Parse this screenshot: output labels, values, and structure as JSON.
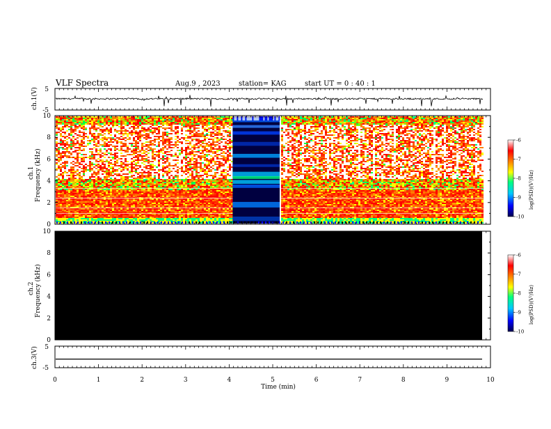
{
  "header": {
    "title": "VLF Spectra",
    "date": "Aug.9 , 2023",
    "station": "station= KAG",
    "start_ut": "start UT = 0 : 40 : 1"
  },
  "chart_data": [
    {
      "type": "line",
      "name": "ch1-waveform",
      "ylabel": "ch.1(V)",
      "ylim": [
        -5,
        5
      ],
      "yticks": [
        "5",
        "-5"
      ],
      "xlim": [
        0,
        10
      ],
      "baseline": 0.2,
      "description_of_values": "noisy waveform around ~0.2 V with sparse negative spikes"
    },
    {
      "type": "heatmap",
      "name": "ch1-spectrogram",
      "ylabel": "ch.1\nFrequency (kHz)",
      "ylim": [
        0,
        10
      ],
      "yticks": [
        "0",
        "2",
        "4",
        "6",
        "8",
        "10"
      ],
      "xlim": [
        0,
        10
      ],
      "data_extent_min": [
        0,
        9.83
      ],
      "gap_min": [
        4.08,
        5.16
      ],
      "colorbar": {
        "label": "log(PSD)(V²/Hz)",
        "range": [
          -10,
          -6
        ],
        "ticks": [
          "-6",
          "-7",
          "-8",
          "-9",
          "-10"
        ]
      }
    },
    {
      "type": "heatmap",
      "name": "ch2-spectrogram",
      "ylabel": "ch.2\nFrequency (kHz)",
      "ylim": [
        0,
        10
      ],
      "yticks": [
        "0",
        "2",
        "4",
        "6",
        "8",
        "10"
      ],
      "xlim": [
        0,
        10
      ],
      "data_extent_min": [
        0,
        9.83
      ],
      "fill": "no signal (black)",
      "colorbar": {
        "label": "log(PSD)(V²/Hz)",
        "range": [
          -10,
          -6
        ],
        "ticks": [
          "-6",
          "-7",
          "-8",
          "-9",
          "-10"
        ]
      }
    },
    {
      "type": "line",
      "name": "ch3-waveform",
      "ylabel": "ch.3(V)",
      "ylim": [
        -5,
        5
      ],
      "yticks": [
        "5",
        "-5"
      ],
      "xlim": [
        0,
        10
      ],
      "baseline": -1.0
    }
  ],
  "xaxis": {
    "label": "Time (min)",
    "ticks": [
      "0",
      "1",
      "2",
      "3",
      "4",
      "5",
      "6",
      "7",
      "8",
      "9",
      "10"
    ]
  },
  "colors": {
    "colormap": [
      "#000050",
      "#0000ff",
      "#00c8ff",
      "#00ff80",
      "#ffff00",
      "#ff8000",
      "#ff0000",
      "#ffffff"
    ]
  }
}
